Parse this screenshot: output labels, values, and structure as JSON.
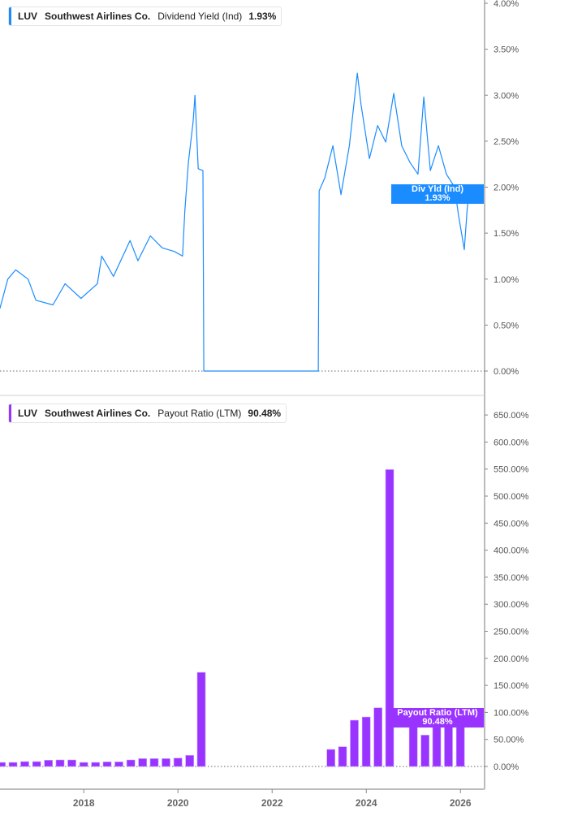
{
  "colors": {
    "yield": "#1a8cff",
    "payout": "#9933ff",
    "axis": "#bbbbbb",
    "zero": "#666666"
  },
  "top_legend": {
    "ticker": "LUV",
    "company": "Southwest Airlines Co.",
    "metric": "Dividend Yield (Ind)",
    "value": "1.93%"
  },
  "bottom_legend": {
    "ticker": "LUV",
    "company": "Southwest Airlines Co.",
    "metric": "Payout Ratio (LTM)",
    "value": "90.48%"
  },
  "top_tag": {
    "label": "Div Yld (Ind)",
    "value": "1.93%"
  },
  "bottom_tag": {
    "label": "Payout Ratio (LTM)",
    "value": "90.48%"
  },
  "chart_data": [
    {
      "type": "line",
      "series": [
        {
          "name": "Dividend Yield (Ind)",
          "points": [
            [
              "2016-03-20",
              0.68
            ],
            [
              "2016-05-20",
              1.0
            ],
            [
              "2016-07-20",
              1.1
            ],
            [
              "2016-10-25",
              1.0
            ],
            [
              "2016-12-25",
              0.77
            ],
            [
              "2017-05-05",
              0.72
            ],
            [
              "2017-08-08",
              0.95
            ],
            [
              "2017-12-10",
              0.79
            ],
            [
              "2018-04-15",
              0.95
            ],
            [
              "2018-05-18",
              1.25
            ],
            [
              "2018-08-18",
              1.03
            ],
            [
              "2018-12-25",
              1.42
            ],
            [
              "2019-02-25",
              1.2
            ],
            [
              "2019-05-30",
              1.47
            ],
            [
              "2019-08-30",
              1.34
            ],
            [
              "2019-12-05",
              1.3
            ],
            [
              "2020-02-06",
              1.25
            ],
            [
              "2020-02-24",
              1.74
            ],
            [
              "2020-03-21",
              2.27
            ],
            [
              "2020-04-27",
              2.71
            ],
            [
              "2020-05-11",
              3.0
            ],
            [
              "2020-06-06",
              2.2
            ],
            [
              "2020-07-12",
              2.18
            ],
            [
              "2020-07-19",
              0
            ],
            [
              "2022-12-24",
              0
            ],
            [
              "2023-01-01",
              1.96
            ],
            [
              "2023-02-14",
              2.1
            ],
            [
              "2023-04-16",
              2.45
            ],
            [
              "2023-06-18",
              1.92
            ],
            [
              "2023-08-22",
              2.45
            ],
            [
              "2023-10-23",
              3.24
            ],
            [
              "2023-11-22",
              2.89
            ],
            [
              "2024-01-25",
              2.31
            ],
            [
              "2024-03-28",
              2.67
            ],
            [
              "2024-05-30",
              2.49
            ],
            [
              "2024-08-01",
              3.02
            ],
            [
              "2024-10-02",
              2.45
            ],
            [
              "2024-12-05",
              2.27
            ],
            [
              "2025-02-06",
              2.14
            ],
            [
              "2025-03-21",
              2.98
            ],
            [
              "2025-05-11",
              2.18
            ],
            [
              "2025-07-13",
              2.45
            ],
            [
              "2025-09-14",
              2.14
            ],
            [
              "2025-11-16",
              2.0
            ],
            [
              "2025-12-16",
              1.7
            ],
            [
              "2026-01-31",
              1.32
            ],
            [
              "2026-02-24",
              1.78
            ],
            [
              "2026-03-09",
              1.93
            ]
          ]
        }
      ],
      "y_ticks": [
        "0.00%",
        "0.50%",
        "1.00%",
        "1.50%",
        "2.00%",
        "2.50%",
        "3.00%",
        "3.50%",
        "4.00%"
      ],
      "ylim": [
        0,
        4
      ],
      "xlim": [
        "2016-03",
        "2026-07"
      ]
    },
    {
      "type": "bar",
      "series": [
        {
          "name": "Payout Ratio (LTM)",
          "points": [
            [
              "2016-03-31",
              7.5
            ],
            [
              "2016-06-30",
              7.5
            ],
            [
              "2016-09-30",
              9
            ],
            [
              "2016-12-31",
              9
            ],
            [
              "2017-03-31",
              11.5
            ],
            [
              "2017-06-30",
              12
            ],
            [
              "2017-09-30",
              12
            ],
            [
              "2017-12-31",
              7.5
            ],
            [
              "2018-03-31",
              7.5
            ],
            [
              "2018-06-30",
              8.5
            ],
            [
              "2018-09-30",
              8.5
            ],
            [
              "2018-12-31",
              12
            ],
            [
              "2019-03-31",
              14.5
            ],
            [
              "2019-06-30",
              14.5
            ],
            [
              "2019-09-30",
              14.5
            ],
            [
              "2019-12-31",
              15.5
            ],
            [
              "2020-03-31",
              20.5
            ],
            [
              "2020-06-30",
              174
            ],
            [
              "2023-03-31",
              31.5
            ],
            [
              "2023-06-30",
              36.5
            ],
            [
              "2023-09-30",
              85.5
            ],
            [
              "2023-12-31",
              91.5
            ],
            [
              "2024-03-31",
              108.5
            ],
            [
              "2024-06-30",
              549
            ],
            [
              "2024-12-31",
              91.5
            ],
            [
              "2025-03-31",
              58
            ],
            [
              "2025-06-30",
              108
            ],
            [
              "2025-09-30",
              105
            ],
            [
              "2025-12-31",
              90.48
            ]
          ]
        }
      ],
      "y_ticks": [
        "0.00%",
        "50.00%",
        "100.00%",
        "150.00%",
        "200.00%",
        "250.00%",
        "300.00%",
        "350.00%",
        "400.00%",
        "450.00%",
        "500.00%",
        "550.00%",
        "600.00%",
        "650.00%"
      ],
      "ylim": [
        0,
        650
      ],
      "x_ticks": [
        "2018",
        "2020",
        "2022",
        "2024",
        "2026"
      ]
    }
  ]
}
